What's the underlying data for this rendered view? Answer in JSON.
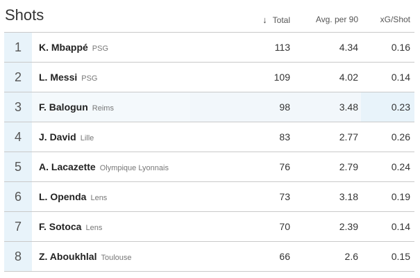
{
  "title": "Shots",
  "columns": {
    "total": "Total",
    "avg": "Avg. per 90",
    "xg": "xG/Shot"
  },
  "rows": [
    {
      "rank": "1",
      "player": "K. Mbappé",
      "team": "PSG",
      "total": "113",
      "avg": "4.34",
      "xg": "0.16"
    },
    {
      "rank": "2",
      "player": "L. Messi",
      "team": "PSG",
      "total": "109",
      "avg": "4.02",
      "xg": "0.14"
    },
    {
      "rank": "3",
      "player": "F. Balogun",
      "team": "Reims",
      "total": "98",
      "avg": "3.48",
      "xg": "0.23"
    },
    {
      "rank": "4",
      "player": "J. David",
      "team": "Lille",
      "total": "83",
      "avg": "2.77",
      "xg": "0.26"
    },
    {
      "rank": "5",
      "player": "A. Lacazette",
      "team": "Olympique Lyonnais",
      "total": "76",
      "avg": "2.79",
      "xg": "0.24"
    },
    {
      "rank": "6",
      "player": "L. Openda",
      "team": "Lens",
      "total": "73",
      "avg": "3.18",
      "xg": "0.19"
    },
    {
      "rank": "7",
      "player": "F. Sotoca",
      "team": "Lens",
      "total": "70",
      "avg": "2.39",
      "xg": "0.14"
    },
    {
      "rank": "8",
      "player": "Z. Aboukhlal",
      "team": "Toulouse",
      "total": "66",
      "avg": "2.6",
      "xg": "0.15"
    }
  ],
  "icons": {
    "sort": "arrow-down-icon"
  },
  "colors": {
    "rank_bg": "#e8f3fa",
    "row_highlight": "#f4f9fc",
    "divider": "#c9c9c9"
  }
}
